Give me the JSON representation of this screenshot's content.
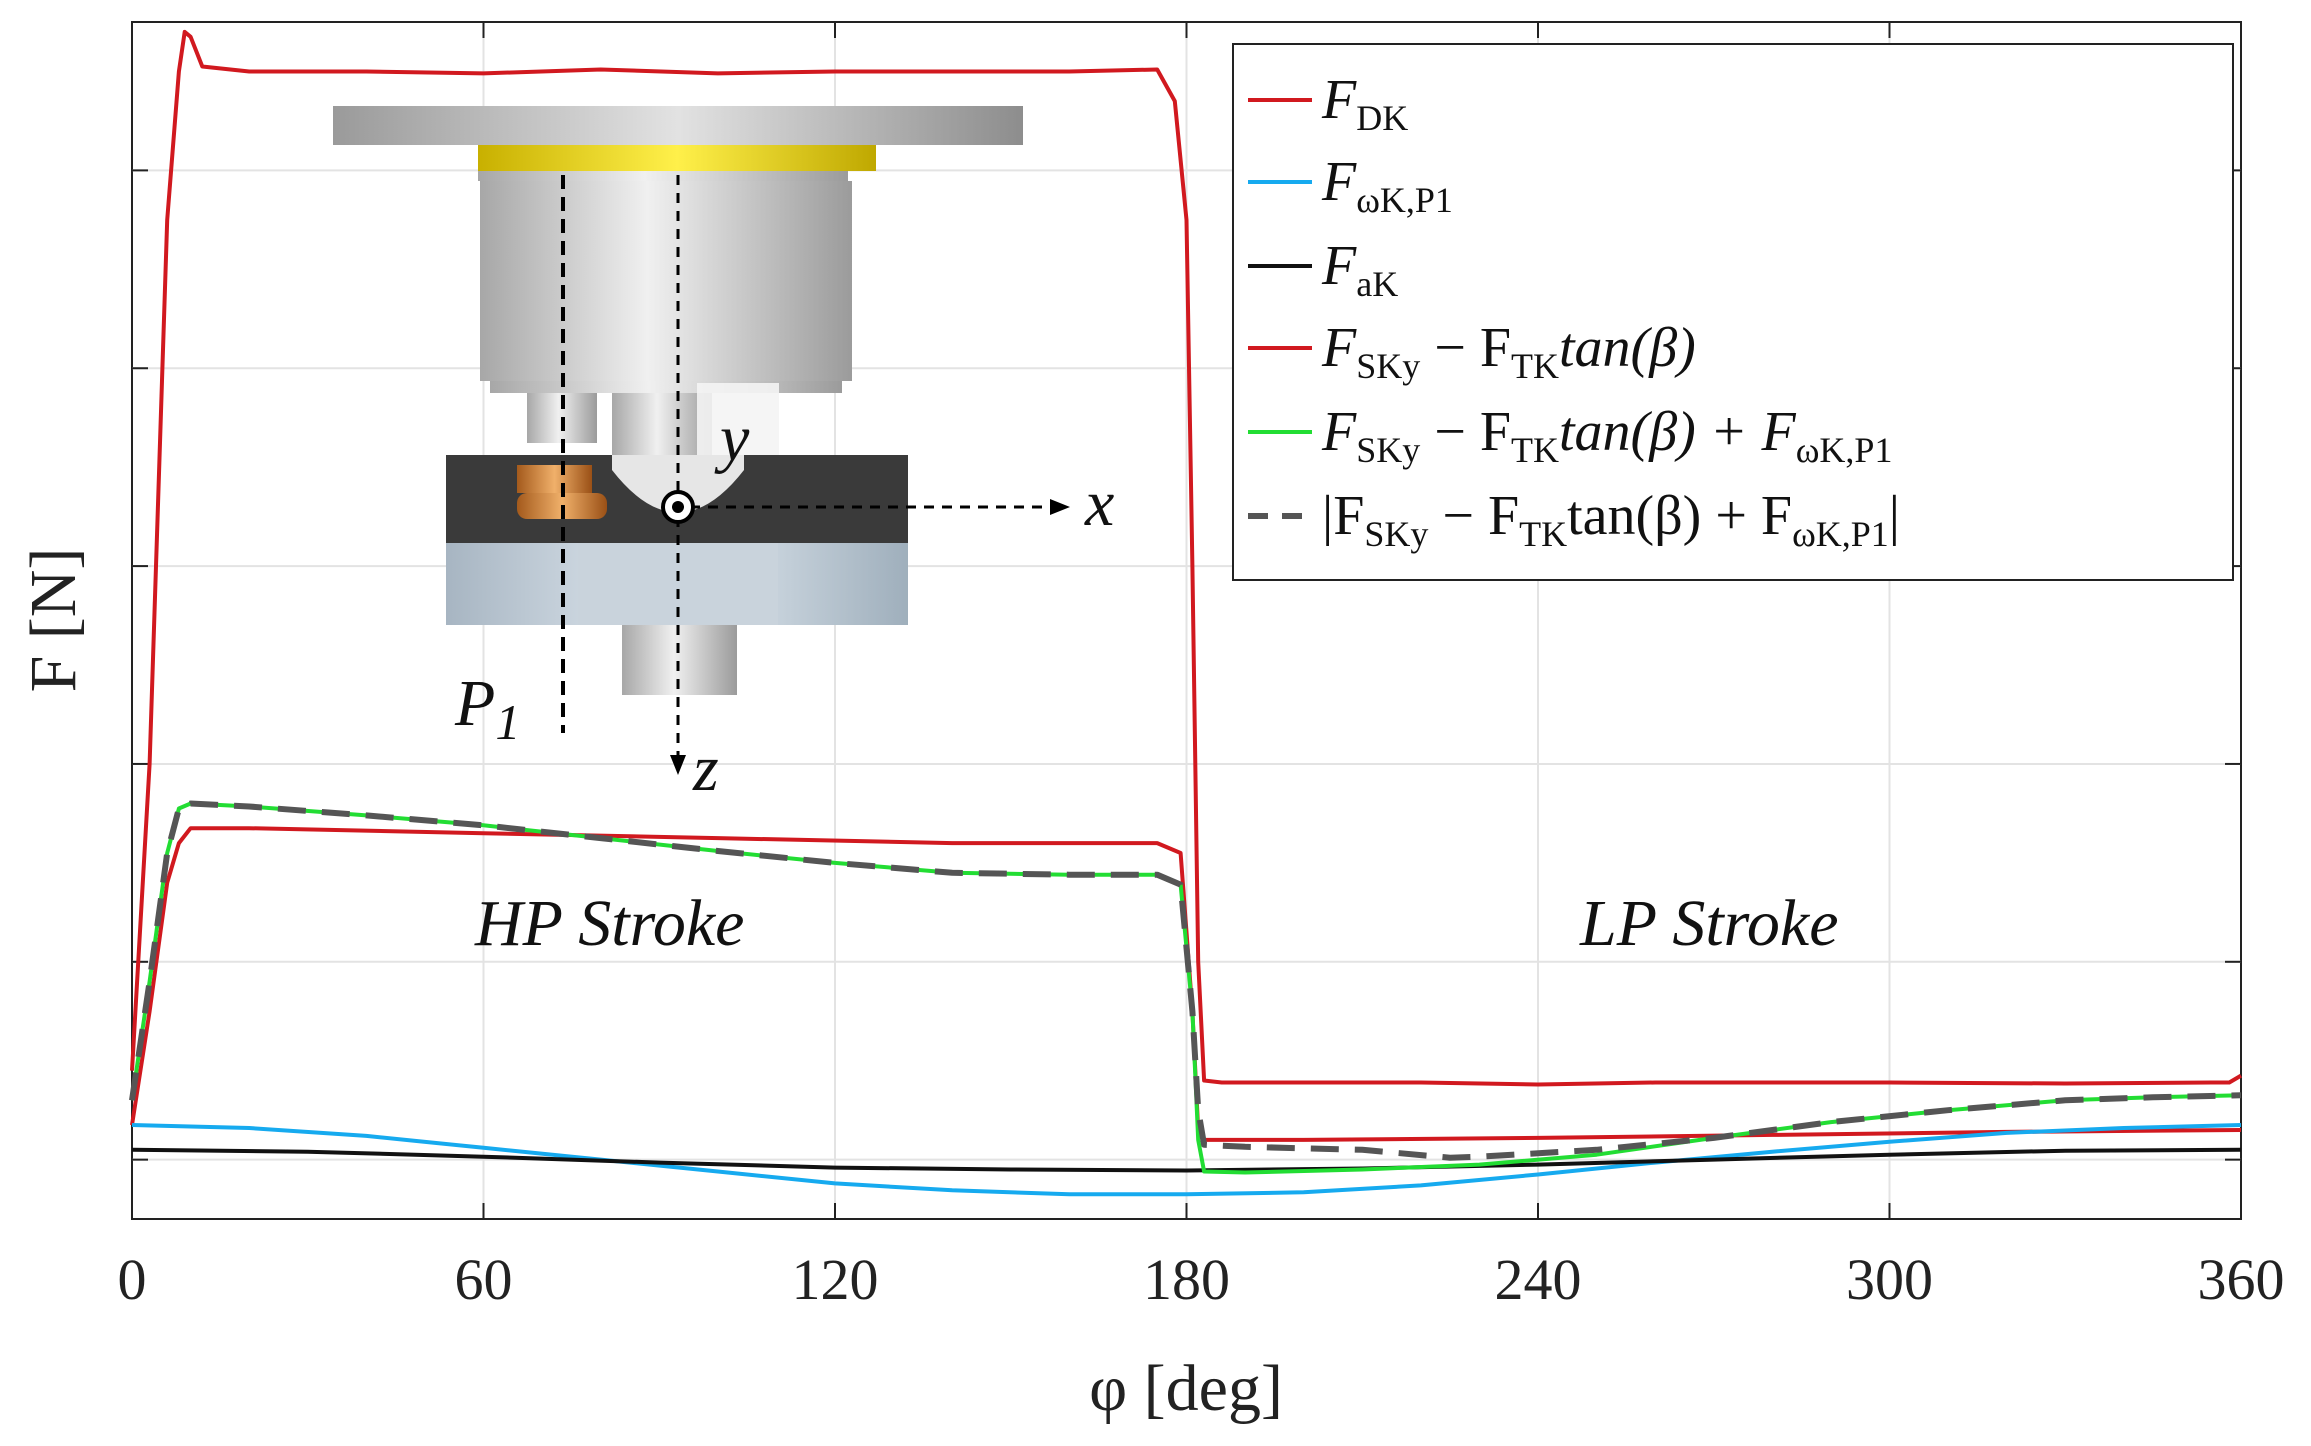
{
  "chart_data": {
    "type": "line",
    "xlabel": "φ [deg]",
    "ylabel": "F [N]",
    "xlim": [
      0,
      360
    ],
    "ylim": [
      -0.6,
      11.5
    ],
    "xticks": [
      0,
      60,
      120,
      180,
      240,
      300,
      360
    ],
    "xtick_labels": [
      "0",
      "60",
      "120",
      "180",
      "240",
      "300",
      "360"
    ],
    "yticks": [
      0,
      2,
      4,
      6,
      8,
      10
    ],
    "annotations": {
      "hp": "HP Stroke",
      "lp": "LP Stroke",
      "p1_main": "P",
      "p1_sub": "1",
      "axis_x": "x",
      "axis_y": "y",
      "axis_z": "z"
    },
    "legend": {
      "position": "top-right",
      "entries": [
        {
          "id": "fdk",
          "main": "F",
          "sub": "DK",
          "color": "#d1191f",
          "dash": "solid"
        },
        {
          "id": "fomega",
          "main": "F",
          "sub": "ωK,P1",
          "color": "#16aaef",
          "dash": "solid"
        },
        {
          "id": "fak",
          "main": "F",
          "sub": "aK",
          "color": "#111111",
          "dash": "solid"
        },
        {
          "id": "fsky",
          "parts": [
            "F",
            "SKy",
            " − F",
            "TK",
            "tan(β)"
          ],
          "color": "#d1191f",
          "dash": "solid"
        },
        {
          "id": "fsum",
          "parts": [
            "F",
            "SKy",
            " − F",
            "TK",
            "tan(β) + F",
            "ωK,P1"
          ],
          "color": "#22dd33",
          "dash": "solid"
        },
        {
          "id": "fabs",
          "parts": [
            "|F",
            "SKy",
            " − F",
            "TK",
            "tan(β) + F",
            "ωK,P1",
            "|"
          ],
          "color": "#555555",
          "dash": "dashed"
        }
      ]
    },
    "series": [
      {
        "name": "F_DK",
        "color": "#d1191f",
        "width": 4,
        "dash": "",
        "points": [
          [
            0,
            0.9
          ],
          [
            3,
            4
          ],
          [
            6,
            9.5
          ],
          [
            8,
            11
          ],
          [
            9,
            11.4
          ],
          [
            10,
            11.35
          ],
          [
            12,
            11.05
          ],
          [
            20,
            11.0
          ],
          [
            40,
            11.0
          ],
          [
            60,
            10.98
          ],
          [
            80,
            11.02
          ],
          [
            100,
            10.98
          ],
          [
            120,
            11.0
          ],
          [
            140,
            11.0
          ],
          [
            160,
            11.0
          ],
          [
            175,
            11.02
          ],
          [
            178,
            10.7
          ],
          [
            180,
            9.5
          ],
          [
            181,
            6
          ],
          [
            182,
            2
          ],
          [
            183,
            0.8
          ],
          [
            186,
            0.78
          ],
          [
            220,
            0.78
          ],
          [
            240,
            0.76
          ],
          [
            260,
            0.78
          ],
          [
            300,
            0.78
          ],
          [
            330,
            0.77
          ],
          [
            355,
            0.78
          ],
          [
            358,
            0.78
          ],
          [
            360,
            0.85
          ]
        ]
      },
      {
        "name": "F_SKy - F_TK tan(beta)",
        "color": "#d1191f",
        "width": 4,
        "dash": "",
        "points": [
          [
            0,
            0.35
          ],
          [
            3,
            1.5
          ],
          [
            6,
            2.8
          ],
          [
            8,
            3.2
          ],
          [
            10,
            3.35
          ],
          [
            20,
            3.35
          ],
          [
            60,
            3.3
          ],
          [
            100,
            3.25
          ],
          [
            140,
            3.2
          ],
          [
            175,
            3.2
          ],
          [
            179,
            3.1
          ],
          [
            181,
            1.5
          ],
          [
            182,
            0.3
          ],
          [
            183,
            0.2
          ],
          [
            200,
            0.2
          ],
          [
            240,
            0.22
          ],
          [
            280,
            0.25
          ],
          [
            320,
            0.28
          ],
          [
            360,
            0.3
          ]
        ]
      },
      {
        "name": "F_omegaK,P1",
        "color": "#16aaef",
        "width": 4,
        "dash": "",
        "points": [
          [
            0,
            0.35
          ],
          [
            20,
            0.32
          ],
          [
            40,
            0.24
          ],
          [
            60,
            0.12
          ],
          [
            80,
            0.0
          ],
          [
            100,
            -0.12
          ],
          [
            120,
            -0.24
          ],
          [
            140,
            -0.31
          ],
          [
            160,
            -0.35
          ],
          [
            180,
            -0.35
          ],
          [
            200,
            -0.33
          ],
          [
            220,
            -0.26
          ],
          [
            240,
            -0.15
          ],
          [
            260,
            -0.03
          ],
          [
            280,
            0.08
          ],
          [
            300,
            0.18
          ],
          [
            320,
            0.27
          ],
          [
            340,
            0.32
          ],
          [
            360,
            0.35
          ]
        ]
      },
      {
        "name": "F_aK",
        "color": "#111111",
        "width": 4,
        "dash": "",
        "points": [
          [
            0,
            0.1
          ],
          [
            30,
            0.08
          ],
          [
            60,
            0.03
          ],
          [
            90,
            -0.03
          ],
          [
            120,
            -0.08
          ],
          [
            150,
            -0.1
          ],
          [
            180,
            -0.11
          ],
          [
            210,
            -0.09
          ],
          [
            240,
            -0.05
          ],
          [
            270,
            0.0
          ],
          [
            300,
            0.05
          ],
          [
            330,
            0.09
          ],
          [
            360,
            0.1
          ]
        ]
      },
      {
        "name": "F_SKy - F_TK tan(beta) + F_omegaK,P1",
        "color": "#22dd33",
        "width": 4,
        "dash": "",
        "points": [
          [
            0,
            0.6
          ],
          [
            3,
            1.8
          ],
          [
            6,
            3.1
          ],
          [
            8,
            3.55
          ],
          [
            10,
            3.6
          ],
          [
            20,
            3.57
          ],
          [
            40,
            3.48
          ],
          [
            60,
            3.38
          ],
          [
            80,
            3.25
          ],
          [
            100,
            3.12
          ],
          [
            120,
            3.0
          ],
          [
            140,
            2.9
          ],
          [
            160,
            2.88
          ],
          [
            175,
            2.88
          ],
          [
            179,
            2.78
          ],
          [
            181,
            1.5
          ],
          [
            182,
            0.2
          ],
          [
            183,
            -0.12
          ],
          [
            190,
            -0.13
          ],
          [
            210,
            -0.1
          ],
          [
            230,
            -0.05
          ],
          [
            250,
            0.05
          ],
          [
            270,
            0.22
          ],
          [
            290,
            0.38
          ],
          [
            310,
            0.5
          ],
          [
            330,
            0.6
          ],
          [
            345,
            0.63
          ],
          [
            360,
            0.65
          ]
        ]
      },
      {
        "name": "|F_SKy - F_TK tan(beta) + F_omegaK,P1|",
        "color": "#555555",
        "width": 6,
        "dash": "28,16",
        "points": [
          [
            0,
            0.6
          ],
          [
            3,
            1.8
          ],
          [
            6,
            3.1
          ],
          [
            8,
            3.55
          ],
          [
            10,
            3.6
          ],
          [
            20,
            3.57
          ],
          [
            40,
            3.48
          ],
          [
            60,
            3.38
          ],
          [
            80,
            3.25
          ],
          [
            100,
            3.12
          ],
          [
            120,
            3.0
          ],
          [
            140,
            2.9
          ],
          [
            160,
            2.88
          ],
          [
            175,
            2.88
          ],
          [
            179,
            2.78
          ],
          [
            181,
            1.5
          ],
          [
            182,
            0.5
          ],
          [
            183,
            0.15
          ],
          [
            190,
            0.13
          ],
          [
            210,
            0.1
          ],
          [
            225,
            0.02
          ],
          [
            230,
            0.03
          ],
          [
            250,
            0.1
          ],
          [
            270,
            0.22
          ],
          [
            290,
            0.38
          ],
          [
            310,
            0.5
          ],
          [
            330,
            0.6
          ],
          [
            345,
            0.63
          ],
          [
            360,
            0.65
          ]
        ]
      }
    ]
  }
}
